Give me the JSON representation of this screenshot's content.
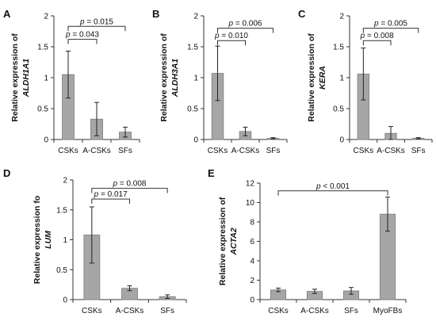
{
  "chart_data": [
    {
      "type": "bar",
      "panel": "A",
      "ylabel": [
        "Relative expression of",
        "ALDH1A1"
      ],
      "categories": [
        "CSKs",
        "A-CSKs",
        "SFs"
      ],
      "values": [
        1.05,
        0.33,
        0.12
      ],
      "errors": [
        0.38,
        0.27,
        0.08
      ],
      "ylim": [
        0,
        2
      ],
      "yticks": [
        "0",
        "0.5",
        "1",
        "1.5",
        "2"
      ],
      "ytick_values": [
        0,
        0.5,
        1,
        1.5,
        2
      ],
      "bar_color": "#a6a6a6",
      "comparisons": [
        {
          "from": 0,
          "to": 1,
          "label_p": "p",
          "label_rest": " = 0.043",
          "level": 1.62
        },
        {
          "from": 0,
          "to": 2,
          "label_p": "p",
          "label_rest": " = 0.015",
          "level": 1.83
        }
      ]
    },
    {
      "type": "bar",
      "panel": "B",
      "ylabel": [
        "Relative expression of",
        "ALDH3A1"
      ],
      "categories": [
        "CSKs",
        "A-CSKs",
        "SFs"
      ],
      "values": [
        1.07,
        0.13,
        0.02
      ],
      "errors": [
        0.44,
        0.07,
        0.01
      ],
      "ylim": [
        0,
        2
      ],
      "yticks": [
        "0",
        "0.5",
        "1",
        "1.5",
        "2"
      ],
      "ytick_values": [
        0,
        0.5,
        1,
        1.5,
        2
      ],
      "bar_color": "#a6a6a6",
      "comparisons": [
        {
          "from": 0,
          "to": 1,
          "label_p": "p",
          "label_rest": " = 0.010",
          "level": 1.6
        },
        {
          "from": 0,
          "to": 2,
          "label_p": "p",
          "label_rest": " = 0.006",
          "level": 1.8
        }
      ]
    },
    {
      "type": "bar",
      "panel": "C",
      "ylabel": [
        "Relative expression of",
        "KERA"
      ],
      "categories": [
        "CSKs",
        "A-CSKs",
        "SFs"
      ],
      "values": [
        1.06,
        0.1,
        0.02
      ],
      "errors": [
        0.42,
        0.11,
        0.01
      ],
      "ylim": [
        0,
        2
      ],
      "yticks": [
        "0",
        "0.5",
        "1",
        "1.5",
        "2"
      ],
      "ytick_values": [
        0,
        0.5,
        1,
        1.5,
        2
      ],
      "bar_color": "#a6a6a6",
      "comparisons": [
        {
          "from": 0,
          "to": 1,
          "label_p": "p",
          "label_rest": " = 0.008",
          "level": 1.6
        },
        {
          "from": 0,
          "to": 2,
          "label_p": "p",
          "label_rest": " = 0.005",
          "level": 1.8
        }
      ]
    },
    {
      "type": "bar",
      "panel": "D",
      "ylabel": [
        "Relative expression fo",
        "LUM"
      ],
      "categories": [
        "CSKs",
        "A-CSKs",
        "SFs"
      ],
      "values": [
        1.08,
        0.19,
        0.05
      ],
      "errors": [
        0.47,
        0.04,
        0.03
      ],
      "ylim": [
        0,
        2
      ],
      "yticks": [
        "0",
        "0.5",
        "1",
        "1.5",
        "2"
      ],
      "ytick_values": [
        0,
        0.5,
        1,
        1.5,
        2
      ],
      "bar_color": "#a6a6a6",
      "comparisons": [
        {
          "from": 0,
          "to": 1,
          "label_p": "p",
          "label_rest": " = 0.017",
          "level": 1.68
        },
        {
          "from": 0,
          "to": 2,
          "label_p": "p",
          "label_rest": " = 0.008",
          "level": 1.86
        }
      ]
    },
    {
      "type": "bar",
      "panel": "E",
      "ylabel": [
        "Relative expression of",
        "ACTA2"
      ],
      "categories": [
        "CSKs",
        "A-CSKs",
        "SFs",
        "MyoFBs"
      ],
      "values": [
        1.0,
        0.85,
        0.9,
        8.8
      ],
      "errors": [
        0.18,
        0.22,
        0.35,
        1.75
      ],
      "ylim": [
        0,
        12
      ],
      "yticks": [
        "0",
        "2",
        "4",
        "6",
        "8",
        "10",
        "12"
      ],
      "ytick_values": [
        0,
        2,
        4,
        6,
        8,
        10,
        12
      ],
      "bar_color": "#a6a6a6",
      "comparisons": [
        {
          "from": 0,
          "to": 3,
          "label_p": "p",
          "label_rest": " < 0.001",
          "level": 11.2
        }
      ]
    }
  ]
}
